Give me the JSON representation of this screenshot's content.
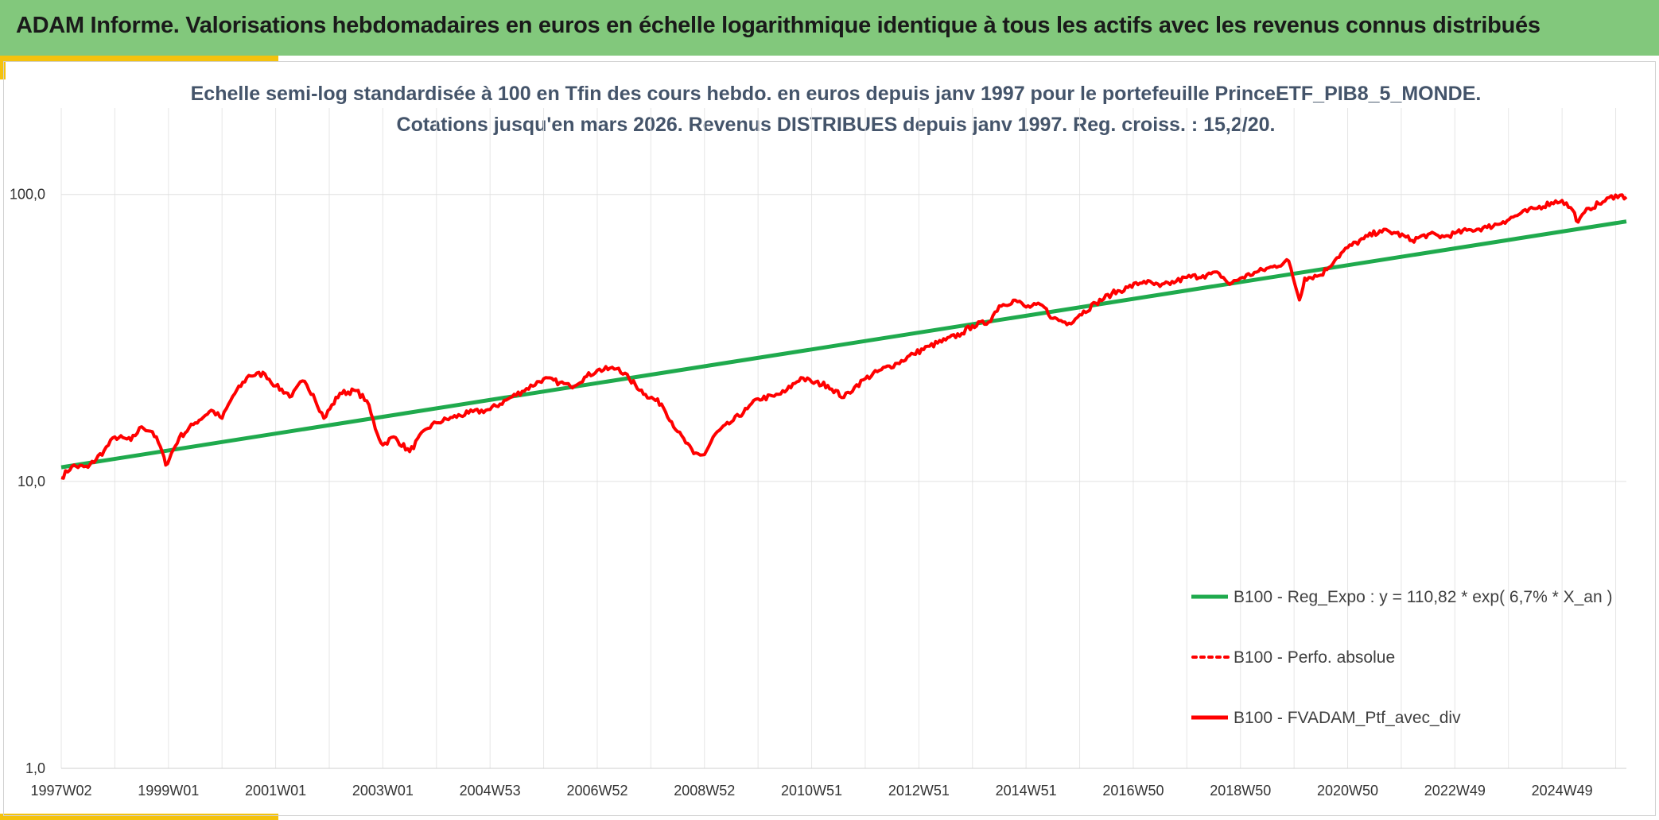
{
  "header": {
    "title": "ADAM Informe. Valorisations hebdomadaires en euros en échelle logarithmique identique à tous les actifs avec les revenus connus distribués"
  },
  "colors": {
    "header_bg": "#82c87c",
    "accent_yellow": "#f4c20d",
    "regression": "#1faa4d",
    "portfolio": "#ff0000"
  },
  "chart_data": {
    "type": "line",
    "title_lines": [
      "Echelle semi-log standardisée à 100 en Tfin des cours hebdo. en euros depuis janv 1997 pour le portefeuille PrinceETF_PIB8_5_MONDE.",
      "Cotations jusqu'en mars 2026. Revenus DISTRIBUES depuis janv 1997. Reg. croiss. : 15,2/20."
    ],
    "y_scale": "log",
    "ylim": [
      1,
      200
    ],
    "y_ticks": [
      {
        "value": 1,
        "label": "1,0"
      },
      {
        "value": 10,
        "label": "10,0"
      },
      {
        "value": 100,
        "label": "100,0"
      }
    ],
    "xlim": [
      1997.0,
      2026.2
    ],
    "x_ticks": [
      {
        "value": 1997.0,
        "label": "1997W02"
      },
      {
        "value": 1999.0,
        "label": "1999W01"
      },
      {
        "value": 2001.0,
        "label": "2001W01"
      },
      {
        "value": 2003.0,
        "label": "2003W01"
      },
      {
        "value": 2005.0,
        "label": "2004W53"
      },
      {
        "value": 2007.0,
        "label": "2006W52"
      },
      {
        "value": 2009.0,
        "label": "2008W52"
      },
      {
        "value": 2011.0,
        "label": "2010W51"
      },
      {
        "value": 2013.0,
        "label": "2012W51"
      },
      {
        "value": 2015.0,
        "label": "2014W51"
      },
      {
        "value": 2017.0,
        "label": "2016W50"
      },
      {
        "value": 2019.0,
        "label": "2018W50"
      },
      {
        "value": 2021.0,
        "label": "2020W50"
      },
      {
        "value": 2023.0,
        "label": "2022W49"
      },
      {
        "value": 2025.0,
        "label": "2024W49"
      }
    ],
    "grid": {
      "vertical": true,
      "horizontal": true
    },
    "legend_position": "bottom-right",
    "series": [
      {
        "name": "B100 - Reg_Expo : y = 110,82 * exp( 6,7% *  X_an )",
        "style": "solid",
        "color": "#1faa4d",
        "x": [
          1997.0,
          2026.2
        ],
        "y": [
          11.2,
          80.5
        ]
      },
      {
        "name": "B100 - Perfo. absolue",
        "style": "dotted",
        "color": "#ff0000",
        "x": [],
        "y": []
      },
      {
        "name": "B100 - FVADAM_Ptf_avec_div",
        "style": "solid",
        "color": "#ff0000",
        "x": [
          1997.0,
          1997.2,
          1997.5,
          1997.8,
          1998.0,
          1998.3,
          1998.5,
          1998.7,
          1998.85,
          1998.95,
          1999.2,
          1999.5,
          1999.8,
          2000.0,
          2000.2,
          2000.5,
          2000.8,
          2001.0,
          2001.3,
          2001.5,
          2001.7,
          2001.9,
          2002.2,
          2002.5,
          2002.7,
          2002.9,
          2003.0,
          2003.2,
          2003.5,
          2003.8,
          2004.0,
          2004.3,
          2004.6,
          2005.0,
          2005.3,
          2005.6,
          2006.0,
          2006.3,
          2006.5,
          2006.8,
          2007.0,
          2007.4,
          2007.6,
          2007.9,
          2008.2,
          2008.5,
          2008.8,
          2009.0,
          2009.2,
          2009.5,
          2009.8,
          2010.0,
          2010.3,
          2010.5,
          2010.8,
          2011.0,
          2011.3,
          2011.6,
          2011.8,
          2012.0,
          2012.3,
          2012.6,
          2012.9,
          2013.2,
          2013.5,
          2013.8,
          2014.0,
          2014.3,
          2014.5,
          2014.8,
          2015.0,
          2015.3,
          2015.5,
          2015.8,
          2016.0,
          2016.3,
          2016.6,
          2016.9,
          2017.2,
          2017.5,
          2017.8,
          2018.0,
          2018.3,
          2018.6,
          2018.8,
          2019.0,
          2019.3,
          2019.6,
          2019.9,
          2020.1,
          2020.2,
          2020.5,
          2020.8,
          2021.0,
          2021.3,
          2021.6,
          2021.9,
          2022.2,
          2022.5,
          2022.8,
          2023.0,
          2023.3,
          2023.6,
          2023.9,
          2024.2,
          2024.5,
          2024.8,
          2025.0,
          2025.2,
          2025.3,
          2025.5,
          2025.8,
          2026.0,
          2026.2
        ],
        "y": [
          10.3,
          11.3,
          11.2,
          12.8,
          14.3,
          13.9,
          15.5,
          14.9,
          13.2,
          11.4,
          14.2,
          16.0,
          17.7,
          16.6,
          19.8,
          23.4,
          23.7,
          21.5,
          19.8,
          22.4,
          20.1,
          16.6,
          20.3,
          20.7,
          19.1,
          14.6,
          13.4,
          14.3,
          12.7,
          15.2,
          16.0,
          16.7,
          17.3,
          17.8,
          19.2,
          20.6,
          22.8,
          22.1,
          21.4,
          23.2,
          24.4,
          24.8,
          22.7,
          20.1,
          18.6,
          14.9,
          12.5,
          12.4,
          14.6,
          16.1,
          17.9,
          19.4,
          19.8,
          20.5,
          23.0,
          22.2,
          21.6,
          19.6,
          21.3,
          22.8,
          24.5,
          25.8,
          27.8,
          29.6,
          31.1,
          32.8,
          34.9,
          35.9,
          40.9,
          42.8,
          40.5,
          41.1,
          37.0,
          35.6,
          38.1,
          41.8,
          45.1,
          47.4,
          49.8,
          47.8,
          49.8,
          51.4,
          52.1,
          53.1,
          48.6,
          51.1,
          53.6,
          55.9,
          58.6,
          42.9,
          51.1,
          52.4,
          60.2,
          65.3,
          70.1,
          74.8,
          73.4,
          69.2,
          72.6,
          71.2,
          73.2,
          75.3,
          76.7,
          80.3,
          85.3,
          89.3,
          93.6,
          95.3,
          88.1,
          80.1,
          89.5,
          94.8,
          99.5,
          98.0
        ]
      }
    ]
  }
}
